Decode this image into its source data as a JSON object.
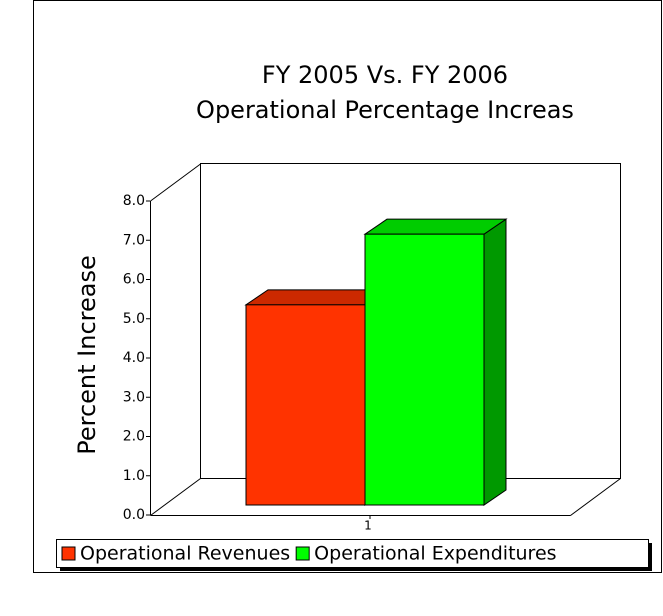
{
  "chart_data": {
    "type": "bar3d",
    "title": "FY 2005  Vs. FY 2006",
    "subtitle": "Operational Percentage Increas",
    "y_label": "Percent Increase",
    "categories": [
      "1"
    ],
    "series": [
      {
        "name": "Operational Revenues",
        "color": "#ff3300",
        "values": [
          5.1
        ]
      },
      {
        "name": "Operational Expenditures",
        "color": "#00ff00",
        "values": [
          6.9
        ]
      }
    ],
    "ylim": [
      0,
      8
    ],
    "yticks": [
      {
        "value": 0,
        "label": "0.0"
      },
      {
        "value": 1,
        "label": "1.0"
      },
      {
        "value": 2,
        "label": "2.0"
      },
      {
        "value": 3,
        "label": "3.0"
      },
      {
        "value": 4,
        "label": "4.0"
      },
      {
        "value": 5,
        "label": "5.0"
      },
      {
        "value": 6,
        "label": "6.0"
      },
      {
        "value": 7,
        "label": "7.0"
      },
      {
        "value": 8,
        "label": "8.0"
      }
    ],
    "legend": "bottom"
  }
}
